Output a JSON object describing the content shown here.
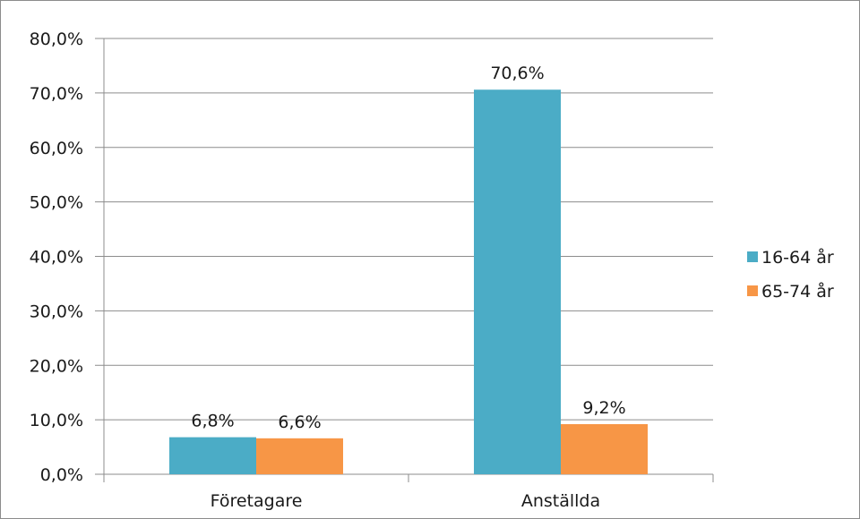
{
  "chart_data": {
    "type": "bar",
    "categories": [
      "Företagare",
      "Anställda"
    ],
    "series": [
      {
        "name": "16-64 år",
        "values": [
          6.8,
          70.6
        ],
        "labels": [
          "6,8%",
          "70,6%"
        ],
        "color": "#4bacc6"
      },
      {
        "name": "65-74 år",
        "values": [
          6.6,
          9.2
        ],
        "labels": [
          "6,6%",
          "9,2%"
        ],
        "color": "#f79646"
      }
    ],
    "ylim": [
      0,
      80
    ],
    "yticks": [
      {
        "value": 0,
        "label": "0,0%"
      },
      {
        "value": 10,
        "label": "10,0%"
      },
      {
        "value": 20,
        "label": "20,0%"
      },
      {
        "value": 30,
        "label": "30,0%"
      },
      {
        "value": 40,
        "label": "40,0%"
      },
      {
        "value": 50,
        "label": "50,0%"
      },
      {
        "value": 60,
        "label": "60,0%"
      },
      {
        "value": 70,
        "label": "70,0%"
      },
      {
        "value": 80,
        "label": "80,0%"
      }
    ],
    "grid": true,
    "legend": "right",
    "gridColor": "#8c8c8c"
  }
}
